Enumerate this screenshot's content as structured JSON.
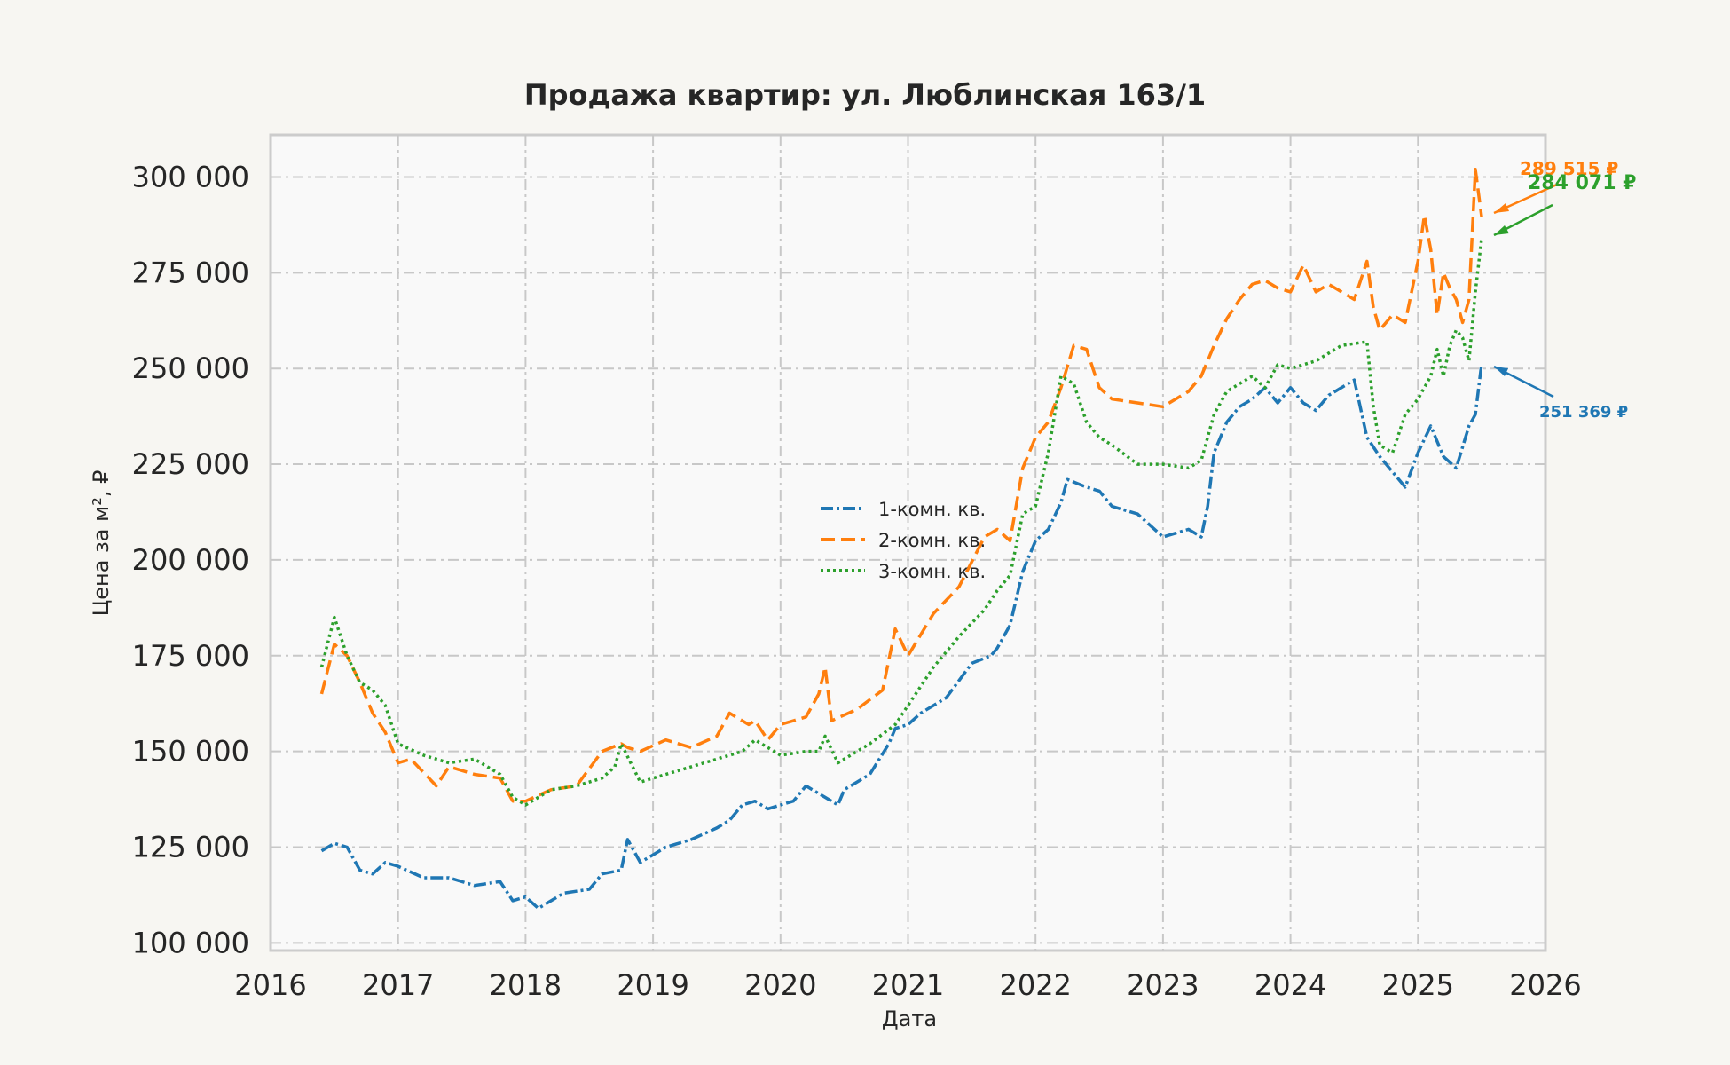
{
  "chart_data": {
    "type": "line",
    "title": "Продажа квартир: ул. Люблинская 163/1",
    "xlabel": "Дата",
    "ylabel": "Цена за м², ₽",
    "x_ticks": [
      "2016",
      "2017",
      "2018",
      "2019",
      "2020",
      "2021",
      "2022",
      "2023",
      "2024",
      "2025",
      "2026"
    ],
    "y_ticks": [
      "100 000",
      "125 000",
      "150 000",
      "175 000",
      "200 000",
      "225 000",
      "250 000",
      "275 000",
      "300 000"
    ],
    "xlim": [
      2016.0,
      2026.0
    ],
    "ylim": [
      98000,
      311000
    ],
    "grid": true,
    "legend_position": "center",
    "series": [
      {
        "name": "1-комн. кв.",
        "color": "#1f77b4",
        "dash": "14,4,3,4",
        "x": [
          2016.4,
          2016.5,
          2016.6,
          2016.7,
          2016.8,
          2016.9,
          2017.0,
          2017.2,
          2017.4,
          2017.6,
          2017.8,
          2017.9,
          2018.0,
          2018.1,
          2018.15,
          2018.3,
          2018.5,
          2018.6,
          2018.75,
          2018.8,
          2018.9,
          2019.1,
          2019.3,
          2019.5,
          2019.6,
          2019.7,
          2019.8,
          2019.9,
          2020.0,
          2020.1,
          2020.2,
          2020.3,
          2020.45,
          2020.5,
          2020.7,
          2020.85,
          2020.9,
          2021.0,
          2021.1,
          2021.3,
          2021.5,
          2021.65,
          2021.7,
          2021.8,
          2021.9,
          2022.0,
          2022.1,
          2022.2,
          2022.25,
          2022.4,
          2022.5,
          2022.6,
          2022.8,
          2023.0,
          2023.2,
          2023.3,
          2023.35,
          2023.4,
          2023.5,
          2023.6,
          2023.7,
          2023.8,
          2023.9,
          2024.0,
          2024.1,
          2024.2,
          2024.3,
          2024.4,
          2024.5,
          2024.6,
          2024.7,
          2024.8,
          2024.9,
          2025.0,
          2025.1,
          2025.2,
          2025.3,
          2025.4,
          2025.45,
          2025.5
        ],
        "y": [
          124000,
          126000,
          125000,
          119000,
          118000,
          121000,
          120000,
          117000,
          117000,
          115000,
          116000,
          111000,
          112000,
          109000,
          110000,
          113000,
          114000,
          118000,
          119000,
          127000,
          121000,
          125000,
          127000,
          130000,
          132000,
          136000,
          137000,
          135000,
          136000,
          137000,
          141000,
          139000,
          136000,
          140000,
          144000,
          152000,
          156000,
          157000,
          160000,
          164000,
          173000,
          175000,
          177000,
          183000,
          197000,
          205000,
          208000,
          215000,
          221000,
          219000,
          218000,
          214000,
          212000,
          206000,
          208000,
          206000,
          214000,
          228000,
          236000,
          240000,
          242000,
          245000,
          241000,
          245000,
          241000,
          239000,
          243000,
          245000,
          247000,
          232000,
          227000,
          223000,
          219000,
          228000,
          235000,
          227000,
          224000,
          235000,
          238000,
          251369
        ]
      },
      {
        "name": "2-комн. кв.",
        "color": "#ff7f0e",
        "dash": "16,7",
        "x": [
          2016.4,
          2016.5,
          2016.6,
          2016.7,
          2016.8,
          2016.9,
          2017.0,
          2017.1,
          2017.3,
          2017.4,
          2017.6,
          2017.8,
          2017.9,
          2018.0,
          2018.2,
          2018.4,
          2018.6,
          2018.75,
          2018.8,
          2018.9,
          2019.1,
          2019.3,
          2019.5,
          2019.6,
          2019.75,
          2019.8,
          2019.9,
          2020.0,
          2020.2,
          2020.3,
          2020.35,
          2020.4,
          2020.6,
          2020.8,
          2020.9,
          2021.0,
          2021.2,
          2021.4,
          2021.6,
          2021.7,
          2021.8,
          2021.9,
          2022.0,
          2022.1,
          2022.2,
          2022.3,
          2022.4,
          2022.5,
          2022.6,
          2022.8,
          2023.0,
          2023.2,
          2023.3,
          2023.4,
          2023.5,
          2023.6,
          2023.7,
          2023.8,
          2023.9,
          2024.0,
          2024.1,
          2024.2,
          2024.3,
          2024.4,
          2024.5,
          2024.6,
          2024.65,
          2024.7,
          2024.8,
          2024.9,
          2025.0,
          2025.05,
          2025.1,
          2025.15,
          2025.2,
          2025.25,
          2025.3,
          2025.35,
          2025.4,
          2025.45,
          2025.5
        ],
        "y": [
          165000,
          178000,
          175000,
          168000,
          160000,
          155000,
          147000,
          148000,
          141000,
          146000,
          144000,
          143000,
          137000,
          137000,
          140000,
          141000,
          150000,
          152000,
          151000,
          150000,
          153000,
          151000,
          154000,
          160000,
          157000,
          158000,
          153000,
          157000,
          159000,
          165000,
          172000,
          158000,
          161000,
          166000,
          182000,
          175000,
          186000,
          193000,
          206000,
          208000,
          205000,
          224000,
          232000,
          236000,
          245000,
          256000,
          255000,
          245000,
          242000,
          241000,
          240000,
          244000,
          248000,
          256000,
          263000,
          268000,
          272000,
          273000,
          271000,
          270000,
          277000,
          270000,
          272000,
          270000,
          268000,
          278000,
          266000,
          260000,
          264000,
          262000,
          278000,
          290000,
          281000,
          264000,
          275000,
          271000,
          268000,
          262000,
          268000,
          302000,
          289515
        ]
      },
      {
        "name": "3-комн. кв.",
        "color": "#2ca02c",
        "dash": "3,4",
        "x": [
          2016.4,
          2016.5,
          2016.6,
          2016.7,
          2016.8,
          2016.9,
          2017.0,
          2017.2,
          2017.4,
          2017.6,
          2017.8,
          2017.9,
          2018.0,
          2018.2,
          2018.4,
          2018.6,
          2018.7,
          2018.75,
          2018.9,
          2019.1,
          2019.3,
          2019.5,
          2019.7,
          2019.8,
          2019.9,
          2020.0,
          2020.2,
          2020.3,
          2020.35,
          2020.45,
          2020.5,
          2020.7,
          2020.9,
          2021.0,
          2021.2,
          2021.4,
          2021.6,
          2021.7,
          2021.8,
          2021.9,
          2022.0,
          2022.1,
          2022.2,
          2022.3,
          2022.4,
          2022.5,
          2022.6,
          2022.8,
          2023.0,
          2023.2,
          2023.3,
          2023.4,
          2023.5,
          2023.6,
          2023.7,
          2023.8,
          2023.9,
          2024.0,
          2024.2,
          2024.4,
          2024.6,
          2024.65,
          2024.7,
          2024.8,
          2024.9,
          2025.0,
          2025.1,
          2025.15,
          2025.2,
          2025.25,
          2025.3,
          2025.35,
          2025.4,
          2025.45,
          2025.5
        ],
        "y": [
          172000,
          185000,
          175000,
          168000,
          166000,
          162000,
          152000,
          149000,
          147000,
          148000,
          144000,
          138000,
          136000,
          140000,
          141000,
          143000,
          146000,
          152000,
          142000,
          144000,
          146000,
          148000,
          150000,
          153000,
          151000,
          149000,
          150000,
          150000,
          154000,
          147000,
          148000,
          152000,
          157000,
          162000,
          172000,
          180000,
          187000,
          192000,
          196000,
          212000,
          214000,
          228000,
          248000,
          246000,
          236000,
          232000,
          230000,
          225000,
          225000,
          224000,
          226000,
          238000,
          244000,
          246000,
          248000,
          245000,
          251000,
          250000,
          252000,
          256000,
          257000,
          240000,
          230000,
          228000,
          238000,
          242000,
          248000,
          255000,
          248000,
          256000,
          260000,
          258000,
          252000,
          270000,
          284071
        ]
      }
    ],
    "annotations": [
      {
        "label": "289 515 ₽",
        "series": 1
      },
      {
        "label": "284 071 ₽",
        "series": 2
      },
      {
        "label": "251 369 ₽",
        "series": 0
      }
    ]
  }
}
